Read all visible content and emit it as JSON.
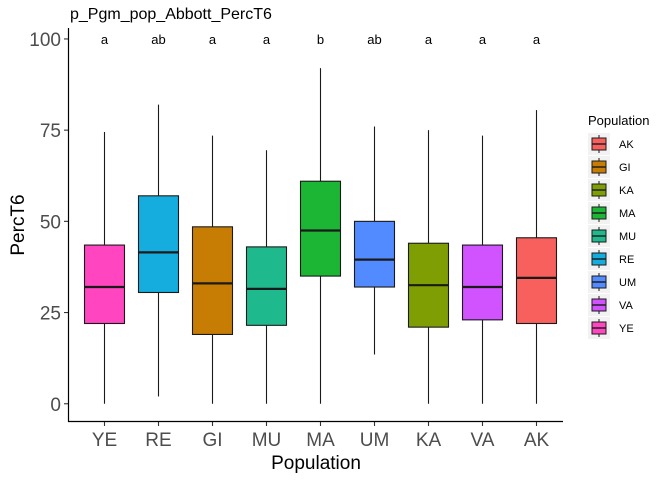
{
  "chart_data": {
    "type": "box",
    "title": "p_Pgm_pop_Abbott_PercT6",
    "xlabel": "Population",
    "ylabel": "PercT6",
    "ylim": [
      -5,
      103
    ],
    "yticks": [
      0,
      25,
      50,
      75,
      100
    ],
    "grid": false,
    "legend": {
      "title": "Population",
      "position": "right"
    },
    "categories": [
      "YE",
      "RE",
      "GI",
      "MU",
      "MA",
      "UM",
      "KA",
      "VA",
      "AK"
    ],
    "boxes": [
      {
        "name": "YE",
        "min": 0,
        "q1": 22,
        "median": 32,
        "q3": 43.5,
        "max": 74.5,
        "letter": "a",
        "color": "#FF45BF"
      },
      {
        "name": "RE",
        "min": 2,
        "q1": 30.5,
        "median": 41.5,
        "q3": 57,
        "max": 82,
        "letter": "ab",
        "color": "#14ADDE"
      },
      {
        "name": "GI",
        "min": 0,
        "q1": 19,
        "median": 33,
        "q3": 48.5,
        "max": 73.5,
        "letter": "a",
        "color": "#C77D04"
      },
      {
        "name": "MU",
        "min": 0,
        "q1": 21.5,
        "median": 31.5,
        "q3": 43,
        "max": 69.5,
        "letter": "a",
        "color": "#1EBA8E"
      },
      {
        "name": "MA",
        "min": 0,
        "q1": 35,
        "median": 47.5,
        "q3": 61,
        "max": 92,
        "letter": "b",
        "color": "#1CB534"
      },
      {
        "name": "UM",
        "min": 13.5,
        "q1": 32,
        "median": 39.5,
        "q3": 50,
        "max": 76,
        "letter": "ab",
        "color": "#528BFF"
      },
      {
        "name": "KA",
        "min": 0,
        "q1": 21,
        "median": 32.5,
        "q3": 44,
        "max": 75,
        "letter": "a",
        "color": "#7F9E04"
      },
      {
        "name": "VA",
        "min": 0,
        "q1": 23,
        "median": 32,
        "q3": 43.5,
        "max": 73.5,
        "letter": "a",
        "color": "#D152FF"
      },
      {
        "name": "AK",
        "min": 0,
        "q1": 22,
        "median": 34.5,
        "q3": 45.5,
        "max": 80.5,
        "letter": "a",
        "color": "#F8605E"
      }
    ],
    "legend_order": [
      "AK",
      "GI",
      "KA",
      "MA",
      "MU",
      "RE",
      "UM",
      "VA",
      "YE"
    ]
  }
}
